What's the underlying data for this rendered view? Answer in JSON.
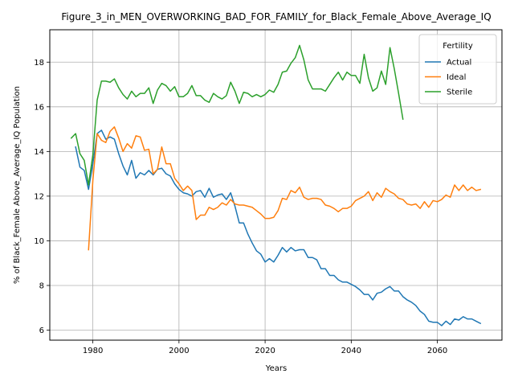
{
  "chart_data": {
    "type": "line",
    "title": "Figure_3_in_MEN_OVERWORKING_BAD_FOR_FAMILY_for_Black_Female_Above_Average_IQ",
    "xlabel": "Years",
    "ylabel": "% of Black_Female Above_Average_IQ Population",
    "xlim": [
      1970,
      2075
    ],
    "ylim": [
      5.55,
      19.45
    ],
    "xticks": [
      1980,
      2000,
      2020,
      2040,
      2060
    ],
    "yticks": [
      6,
      8,
      10,
      12,
      14,
      16,
      18
    ],
    "grid": true,
    "legend": {
      "title": "Fertility",
      "position": "upper right"
    },
    "series": [
      {
        "name": "Actual",
        "color": "#1f77b4",
        "x": [
          1976,
          1977,
          1978,
          1979,
          1980,
          1981,
          1982,
          1983,
          1984,
          1985,
          1986,
          1987,
          1988,
          1989,
          1990,
          1991,
          1992,
          1993,
          1994,
          1995,
          1996,
          1997,
          1998,
          1999,
          2000,
          2001,
          2002,
          2003,
          2004,
          2005,
          2006,
          2007,
          2008,
          2009,
          2010,
          2011,
          2012,
          2013,
          2014,
          2015,
          2016,
          2017,
          2018,
          2019,
          2020,
          2021,
          2022,
          2023,
          2024,
          2025,
          2026,
          2027,
          2028,
          2029,
          2030,
          2031,
          2032,
          2033,
          2034,
          2035,
          2036,
          2037,
          2038,
          2039,
          2040,
          2041,
          2042,
          2043,
          2044,
          2045,
          2046,
          2047,
          2048,
          2049,
          2050,
          2051,
          2052,
          2053,
          2054,
          2055,
          2056,
          2057,
          2058,
          2059,
          2060,
          2061,
          2062,
          2063,
          2064,
          2065,
          2066,
          2067,
          2068,
          2069,
          2070
        ],
        "values": [
          14.2,
          13.3,
          13.15,
          12.3,
          13.45,
          14.8,
          14.95,
          14.55,
          14.65,
          14.55,
          13.9,
          13.35,
          12.95,
          13.6,
          12.8,
          13.05,
          12.95,
          13.15,
          12.95,
          13.2,
          13.25,
          13.0,
          12.9,
          12.55,
          12.3,
          12.15,
          12.1,
          12.0,
          12.2,
          12.25,
          11.95,
          12.35,
          11.95,
          12.05,
          12.1,
          11.85,
          12.15,
          11.55,
          10.8,
          10.8,
          10.3,
          9.9,
          9.55,
          9.4,
          9.05,
          9.2,
          9.05,
          9.35,
          9.7,
          9.5,
          9.7,
          9.55,
          9.6,
          9.6,
          9.25,
          9.25,
          9.15,
          8.75,
          8.75,
          8.45,
          8.45,
          8.25,
          8.15,
          8.15,
          8.05,
          7.95,
          7.8,
          7.6,
          7.6,
          7.35,
          7.65,
          7.7,
          7.85,
          7.95,
          7.75,
          7.75,
          7.5,
          7.35,
          7.25,
          7.1,
          6.85,
          6.7,
          6.4,
          6.35,
          6.35,
          6.2,
          6.4,
          6.25,
          6.5,
          6.45,
          6.6,
          6.5,
          6.5,
          6.4,
          6.3
        ]
      },
      {
        "name": "Ideal",
        "color": "#ff7f0e",
        "x": [
          1979,
          1980,
          1981,
          1982,
          1983,
          1984,
          1985,
          1986,
          1987,
          1988,
          1989,
          1990,
          1991,
          1992,
          1993,
          1994,
          1995,
          1996,
          1997,
          1998,
          1999,
          2000,
          2001,
          2002,
          2003,
          2004,
          2005,
          2006,
          2007,
          2008,
          2009,
          2010,
          2011,
          2012,
          2013,
          2014,
          2015,
          2016,
          2017,
          2018,
          2019,
          2020,
          2021,
          2022,
          2023,
          2024,
          2025,
          2026,
          2027,
          2028,
          2029,
          2030,
          2031,
          2032,
          2033,
          2034,
          2035,
          2036,
          2037,
          2038,
          2039,
          2040,
          2041,
          2042,
          2043,
          2044,
          2045,
          2046,
          2047,
          2048,
          2049,
          2050,
          2051,
          2052,
          2053,
          2054,
          2055,
          2056,
          2057,
          2058,
          2059,
          2060,
          2061,
          2062,
          2063,
          2064,
          2065,
          2066,
          2067,
          2068,
          2069,
          2070
        ],
        "values": [
          9.6,
          12.7,
          14.8,
          14.5,
          14.4,
          14.9,
          15.1,
          14.6,
          14.0,
          14.35,
          14.15,
          14.7,
          14.65,
          14.05,
          14.1,
          13.0,
          13.2,
          14.2,
          13.45,
          13.45,
          12.8,
          12.55,
          12.25,
          12.45,
          12.25,
          10.95,
          11.15,
          11.15,
          11.5,
          11.4,
          11.5,
          11.7,
          11.6,
          11.85,
          11.65,
          11.6,
          11.6,
          11.55,
          11.5,
          11.35,
          11.2,
          11.0,
          11.0,
          11.05,
          11.35,
          11.9,
          11.85,
          12.25,
          12.15,
          12.4,
          11.95,
          11.85,
          11.9,
          11.9,
          11.85,
          11.6,
          11.55,
          11.45,
          11.3,
          11.45,
          11.45,
          11.55,
          11.8,
          11.9,
          12.0,
          12.2,
          11.8,
          12.15,
          11.95,
          12.35,
          12.2,
          12.1,
          11.9,
          11.85,
          11.65,
          11.6,
          11.65,
          11.45,
          11.75,
          11.5,
          11.8,
          11.75,
          11.85,
          12.05,
          11.95,
          12.5,
          12.25,
          12.5,
          12.25,
          12.4,
          12.25,
          12.3
        ]
      },
      {
        "name": "Sterile",
        "color": "#2ca02c",
        "x": [
          1975,
          1976,
          1977,
          1978,
          1979,
          1980,
          1981,
          1982,
          1983,
          1984,
          1985,
          1986,
          1987,
          1988,
          1989,
          1990,
          1991,
          1992,
          1993,
          1994,
          1995,
          1996,
          1997,
          1998,
          1999,
          2000,
          2001,
          2002,
          2003,
          2004,
          2005,
          2006,
          2007,
          2008,
          2009,
          2010,
          2011,
          2012,
          2013,
          2014,
          2015,
          2016,
          2017,
          2018,
          2019,
          2020,
          2021,
          2022,
          2023,
          2024,
          2025,
          2026,
          2027,
          2028,
          2029,
          2030,
          2031,
          2032,
          2033,
          2034,
          2035,
          2036,
          2037,
          2038,
          2039,
          2040,
          2041,
          2042,
          2043,
          2044,
          2045,
          2046,
          2047,
          2048,
          2049,
          2050,
          2051,
          2052
        ],
        "values": [
          14.6,
          14.8,
          13.9,
          13.6,
          12.5,
          13.85,
          16.3,
          17.15,
          17.15,
          17.1,
          17.25,
          16.85,
          16.55,
          16.35,
          16.7,
          16.45,
          16.6,
          16.6,
          16.85,
          16.15,
          16.75,
          17.05,
          16.95,
          16.7,
          16.9,
          16.45,
          16.45,
          16.6,
          16.95,
          16.5,
          16.5,
          16.3,
          16.2,
          16.6,
          16.45,
          16.35,
          16.5,
          17.1,
          16.7,
          16.15,
          16.65,
          16.6,
          16.45,
          16.55,
          16.45,
          16.55,
          16.75,
          16.65,
          17.0,
          17.55,
          17.6,
          17.95,
          18.2,
          18.75,
          18.1,
          17.2,
          16.8,
          16.8,
          16.8,
          16.7,
          17.0,
          17.3,
          17.55,
          17.2,
          17.55,
          17.4,
          17.4,
          17.05,
          18.35,
          17.3,
          16.7,
          16.85,
          17.6,
          17.0,
          18.65,
          17.7,
          16.6,
          15.45
        ]
      }
    ]
  }
}
